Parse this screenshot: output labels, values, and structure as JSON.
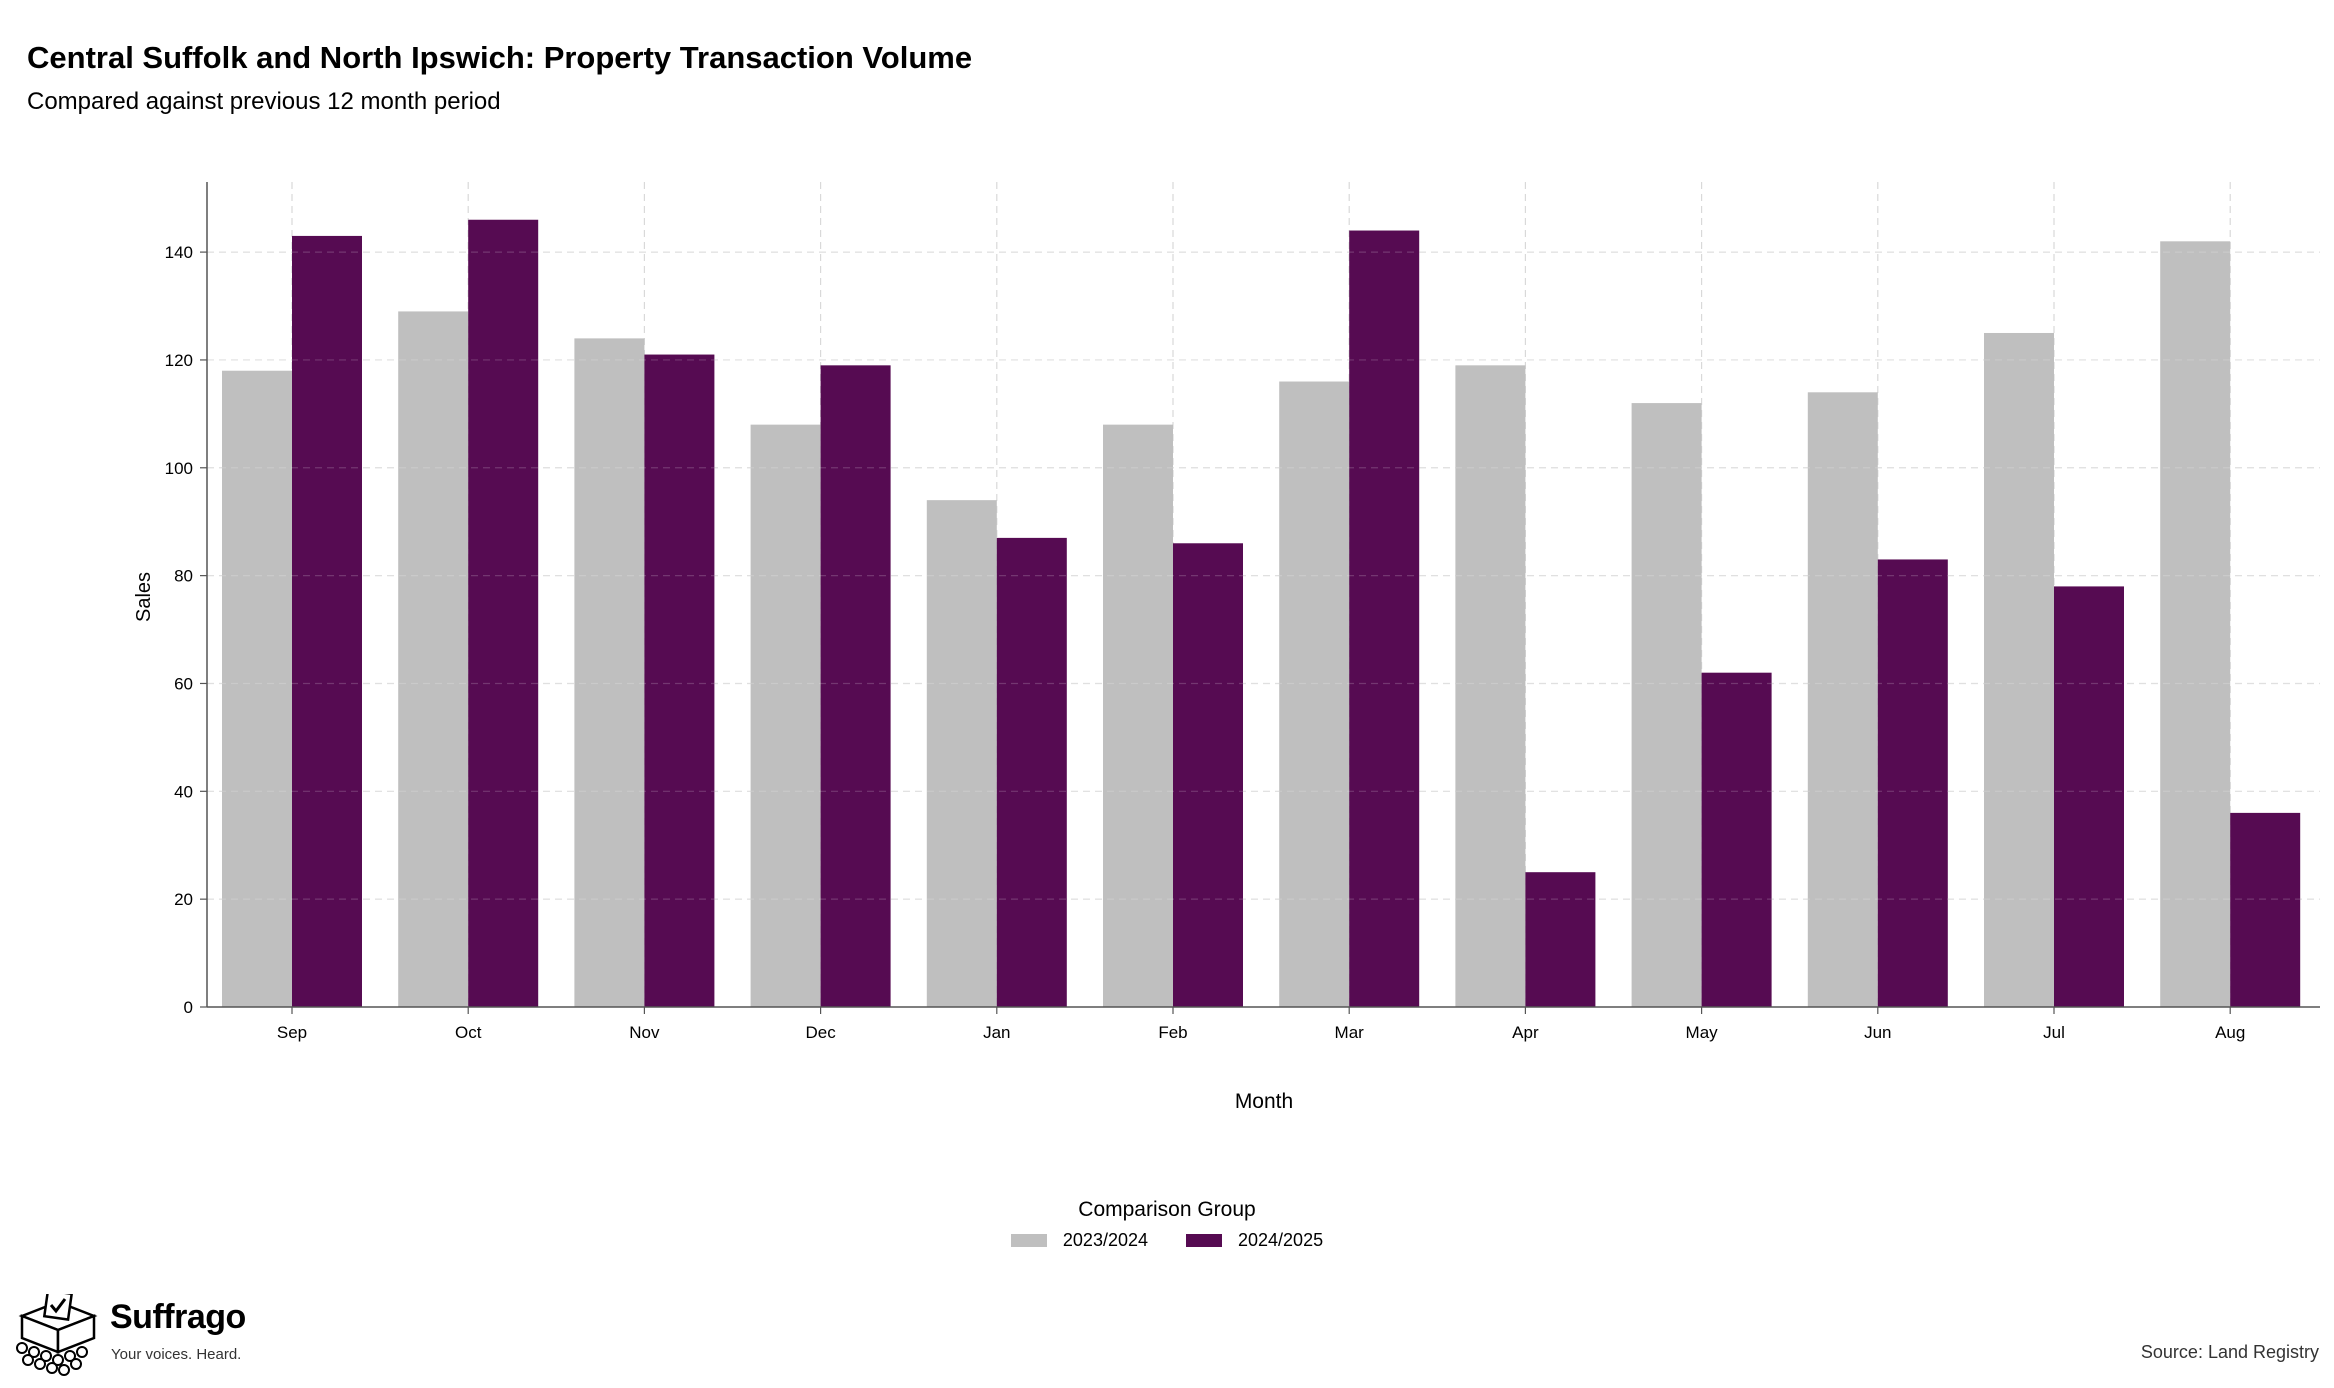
{
  "header": {
    "title": "Central Suffolk and North Ipswich: Property Transaction Volume",
    "subtitle": "Compared against previous 12 month period"
  },
  "chart_data": {
    "type": "bar",
    "title": "Central Suffolk and North Ipswich: Property Transaction Volume",
    "subtitle": "Compared against previous 12 month period",
    "xlabel": "Month",
    "ylabel": "Sales",
    "categories": [
      "Sep",
      "Oct",
      "Nov",
      "Dec",
      "Jan",
      "Feb",
      "Mar",
      "Apr",
      "May",
      "Jun",
      "Jul",
      "Aug"
    ],
    "series": [
      {
        "name": "2023/2024",
        "color": "#bfbfbf",
        "values": [
          118,
          129,
          124,
          108,
          94,
          108,
          116,
          119,
          112,
          114,
          125,
          142
        ]
      },
      {
        "name": "2024/2025",
        "color": "#560b52",
        "values": [
          143,
          146,
          121,
          119,
          87,
          86,
          144,
          25,
          62,
          83,
          78,
          36
        ]
      }
    ],
    "ylim": [
      0,
      153
    ],
    "yticks": [
      0,
      20,
      40,
      60,
      80,
      100,
      120,
      140
    ],
    "grid": true,
    "legend_title": "Comparison Group",
    "legend_position": "bottom"
  },
  "legend": {
    "title": "Comparison Group",
    "items": [
      {
        "label": "2023/2024",
        "color": "#bfbfbf"
      },
      {
        "label": "2024/2025",
        "color": "#560b52"
      }
    ]
  },
  "branding": {
    "name": "Suffrago",
    "tagline": "Your voices. Heard.",
    "logo_icon": "ballot-box-icon"
  },
  "footer": {
    "source": "Source: Land Registry"
  }
}
